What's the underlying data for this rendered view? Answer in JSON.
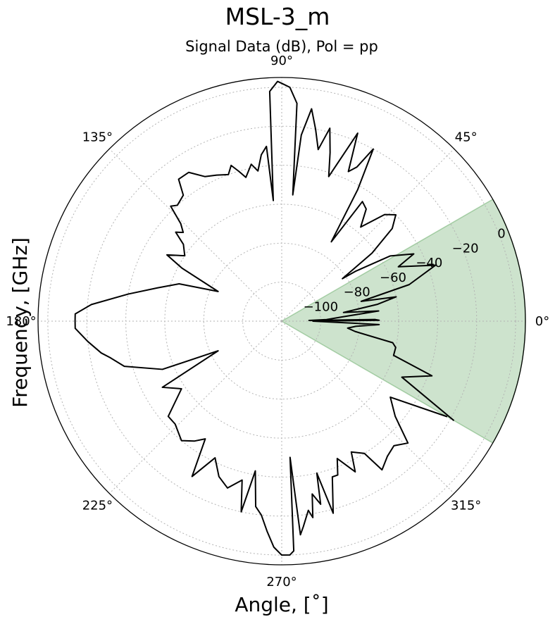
{
  "chart_data": {
    "type": "polar-line",
    "title": "MSL-3_m",
    "subtitle": "Signal Data (dB), Pol = pp",
    "xlabel": "Angle, [$^{\\circ}$]",
    "xlabel_display": "Angle, [˚]",
    "ylabel": "Frequency, [GHz]",
    "angular_ticks": [
      {
        "angle": 0,
        "label": "0°"
      },
      {
        "angle": 45,
        "label": "45°"
      },
      {
        "angle": 90,
        "label": "90°"
      },
      {
        "angle": 135,
        "label": "135°"
      },
      {
        "angle": 180,
        "label": "180°"
      },
      {
        "angle": 225,
        "label": "225°"
      },
      {
        "angle": 270,
        "label": "270°"
      },
      {
        "angle": 315,
        "label": "315°"
      }
    ],
    "radial_range": [
      -120,
      5
    ],
    "radial_ticks": [
      {
        "value": -100,
        "label": "−100"
      },
      {
        "value": -80,
        "label": "−80"
      },
      {
        "value": -60,
        "label": "−60"
      },
      {
        "value": -40,
        "label": "−40"
      },
      {
        "value": -20,
        "label": "−20"
      },
      {
        "value": 0,
        "label": "0"
      }
    ],
    "radial_label_angle": 22,
    "grid": true,
    "highlight_sector": {
      "theta_start": -30,
      "theta_end": 30,
      "r_from": -120,
      "r_to": 5,
      "color": "#2e8b2e",
      "opacity": 0.24
    },
    "series": [
      {
        "color": "#000000",
        "points": [
          [
            -30,
            -18
          ],
          [
            -25,
            -52
          ],
          [
            -20,
            -38
          ],
          [
            -17,
            -60
          ],
          [
            -13,
            -60
          ],
          [
            -11,
            -62
          ],
          [
            -8,
            -82
          ],
          [
            -6,
            -86
          ],
          [
            -4,
            -82
          ],
          [
            -2,
            -70
          ],
          [
            -1,
            -95
          ],
          [
            0,
            -104
          ],
          [
            0.5,
            -70
          ],
          [
            1,
            -72
          ],
          [
            1.5,
            -106
          ],
          [
            2,
            -97
          ],
          [
            4,
            -89
          ],
          [
            6,
            -70
          ],
          [
            8,
            -88
          ],
          [
            10,
            -70
          ],
          [
            12,
            -60
          ],
          [
            14,
            -78
          ],
          [
            16,
            -52
          ],
          [
            20,
            -36
          ],
          [
            25,
            -54
          ],
          [
            27,
            -44
          ],
          [
            31,
            -55
          ],
          [
            34,
            -74
          ],
          [
            35,
            -82
          ],
          [
            37,
            -62
          ],
          [
            40,
            -46
          ],
          [
            43,
            -40
          ],
          [
            46,
            -44
          ],
          [
            50,
            -57
          ],
          [
            53,
            -48
          ],
          [
            56,
            -46
          ],
          [
            58,
            -72
          ],
          [
            60,
            -42
          ],
          [
            62,
            -20
          ],
          [
            64,
            -32
          ],
          [
            66,
            -36
          ],
          [
            68,
            -16
          ],
          [
            72,
            -42
          ],
          [
            74,
            -30
          ],
          [
            76,
            -18
          ],
          [
            78,
            -30
          ],
          [
            80,
            -20
          ],
          [
            82,
            -10
          ],
          [
            84,
            -24
          ],
          [
            85,
            -55
          ],
          [
            86,
            -8
          ],
          [
            88,
            0
          ],
          [
            90,
            2
          ],
          [
            91,
            3
          ],
          [
            93,
            -2
          ],
          [
            94,
            -58
          ],
          [
            95,
            -30
          ],
          [
            97,
            -34
          ],
          [
            99,
            -42
          ],
          [
            101,
            -38
          ],
          [
            104,
            -44
          ],
          [
            106,
            -40
          ],
          [
            108,
            -36
          ],
          [
            110,
            -40
          ],
          [
            114,
            -38
          ],
          [
            118,
            -36
          ],
          [
            122,
            -30
          ],
          [
            126,
            -30
          ],
          [
            128,
            -38
          ],
          [
            132,
            -40
          ],
          [
            134,
            -38
          ],
          [
            136,
            -48
          ],
          [
            138,
            -52
          ],
          [
            140,
            -49
          ],
          [
            142,
            -56
          ],
          [
            146,
            -60
          ],
          [
            150,
            -52
          ],
          [
            152,
            -62
          ],
          [
            155,
            -84
          ],
          [
            160,
            -64
          ],
          [
            165,
            -54
          ],
          [
            170,
            -40
          ],
          [
            175,
            -22
          ],
          [
            178,
            -14
          ],
          [
            180,
            -14
          ],
          [
            182,
            -14
          ],
          [
            186,
            -20
          ],
          [
            190,
            -26
          ],
          [
            192,
            -30
          ],
          [
            196,
            -36
          ],
          [
            202,
            -54
          ],
          [
            205,
            -84
          ],
          [
            209,
            -50
          ],
          [
            214,
            -58
          ],
          [
            220,
            -44
          ],
          [
            224,
            -44
          ],
          [
            230,
            -40
          ],
          [
            234,
            -44
          ],
          [
            237,
            -48
          ],
          [
            240,
            -28
          ],
          [
            244,
            -42
          ],
          [
            248,
            -34
          ],
          [
            252,
            -30
          ],
          [
            256,
            -36
          ],
          [
            258,
            -20
          ],
          [
            260,
            -42
          ],
          [
            262,
            -24
          ],
          [
            264,
            -20
          ],
          [
            266,
            -12
          ],
          [
            268,
            -4
          ],
          [
            270,
            0
          ],
          [
            272,
            0
          ],
          [
            273,
            -2
          ],
          [
            273.5,
            -50
          ],
          [
            275,
            -10
          ],
          [
            276,
            -14
          ],
          [
            278,
            -22
          ],
          [
            279,
            -18
          ],
          [
            280,
            -30
          ],
          [
            282,
            -24
          ],
          [
            283,
            -40
          ],
          [
            285,
            -18
          ],
          [
            288,
            -36
          ],
          [
            290,
            -36
          ],
          [
            292,
            -44
          ],
          [
            296,
            -34
          ],
          [
            298,
            -44
          ],
          [
            302,
            -40
          ],
          [
            304,
            -28
          ],
          [
            308,
            -32
          ],
          [
            312,
            -34
          ],
          [
            316,
            -30
          ],
          [
            320,
            -44
          ],
          [
            325,
            -52
          ],
          [
            330,
            -22
          ]
        ]
      }
    ]
  }
}
